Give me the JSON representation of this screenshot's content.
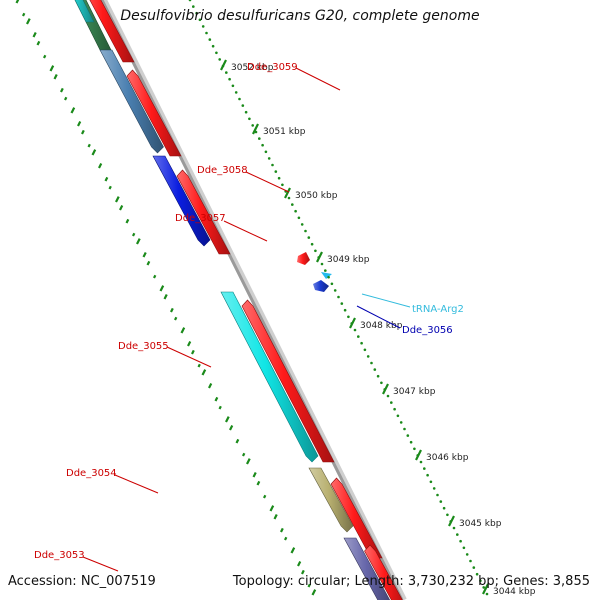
{
  "title": "Desulfovibrio desulfuricans G20, complete genome",
  "footer": {
    "accession_text": "Accession: NC_007519",
    "topology_text": "Topology: circular; Length: 3,730,232 bp; Genes: 3,855"
  },
  "colors": {
    "backbone": "#9a9a9a",
    "gc_ticks": "#1a8a1a",
    "label_red": "#cc0000",
    "label_blue": "#0000b0",
    "label_cyan": "#33bbdd",
    "tick": "#1a8a1a"
  },
  "scale_ticks": [
    {
      "label": "3052 kbp"
    },
    {
      "label": "3051 kbp"
    },
    {
      "label": "3050 kbp"
    },
    {
      "label": "3049 kbp"
    },
    {
      "label": "3048 kbp"
    },
    {
      "label": "3047 kbp"
    },
    {
      "label": "3046 kbp"
    },
    {
      "label": "3045 kbp"
    },
    {
      "label": "3044 kbp"
    }
  ],
  "features": [
    {
      "label": "Dde_3059",
      "label_color": "#cc0000",
      "color": "#4a7fb0"
    },
    {
      "label": "Dde_3058",
      "label_color": "#cc0000",
      "color": "#0a1de0"
    },
    {
      "label": "Dde_3057",
      "label_color": "#cc0000",
      "color": "#ff1a1a"
    },
    {
      "label": "tRNA-Arg2",
      "label_color": "#33bbdd",
      "color": "#22bbee"
    },
    {
      "label": "Dde_3056",
      "label_color": "#0000b0",
      "color": "#1a3ad0"
    },
    {
      "label": "Dde_3055",
      "label_color": "#cc0000",
      "color": "#11e6e6"
    },
    {
      "label": "Dde_3054",
      "label_color": "#cc0000",
      "color": "#b8b070"
    },
    {
      "label": "Dde_3053",
      "label_color": "#cc0000",
      "color": "#6666aa"
    }
  ]
}
